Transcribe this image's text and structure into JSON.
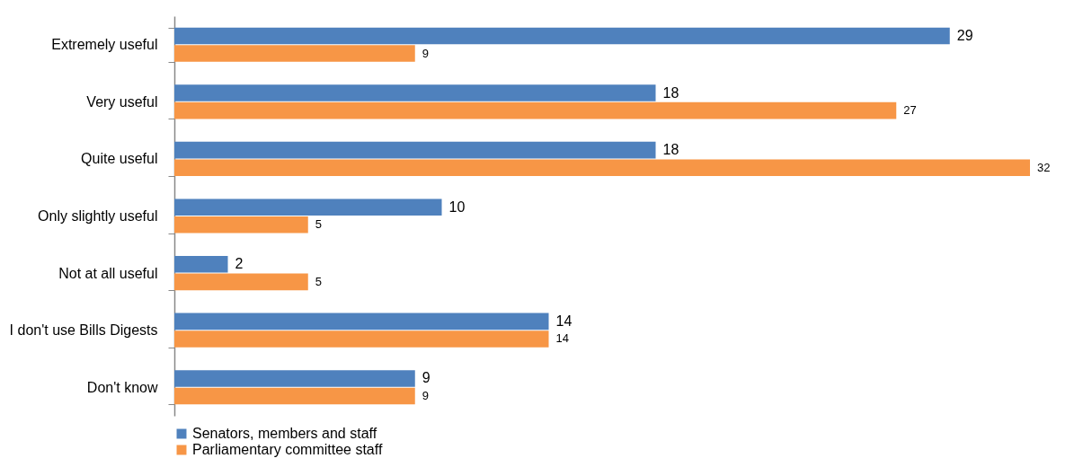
{
  "chart_data": {
    "type": "bar",
    "orientation": "horizontal",
    "categories": [
      "Extremely useful",
      "Very useful",
      "Quite useful",
      "Only slightly useful",
      "Not at all useful",
      "I don't use Bills Digests",
      "Don't know"
    ],
    "series": [
      {
        "name": "Senators, members and staff",
        "color": "#4f81bd",
        "values": [
          29,
          18,
          18,
          10,
          2,
          14,
          9
        ]
      },
      {
        "name": "Parliamentary committee staff",
        "color": "#f79646",
        "values": [
          9,
          27,
          32,
          5,
          5,
          14,
          9
        ]
      }
    ],
    "data_labels": true,
    "legend": "bottom",
    "tick_labels": "y"
  }
}
